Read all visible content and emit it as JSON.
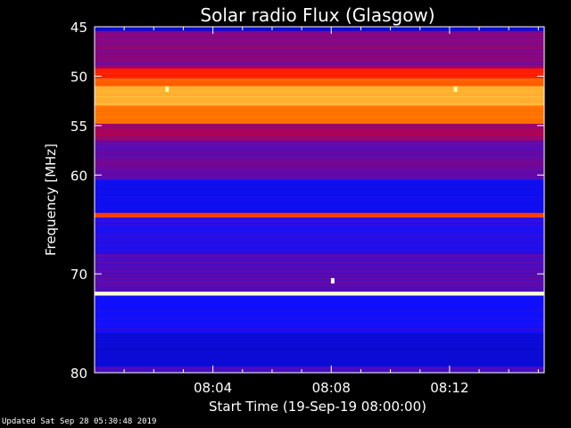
{
  "chart_data": {
    "type": "heatmap",
    "title": "Solar radio Flux (Glasgow)",
    "xlabel": "Start Time (19-Sep-19 08:00:00)",
    "ylabel": "Frequency [MHz]",
    "x_range_minutes": [
      0,
      15.2
    ],
    "ylim": [
      45,
      80
    ],
    "y_inverted": true,
    "x_ticks": [
      {
        "minutes": 4,
        "label": "08:04"
      },
      {
        "minutes": 8,
        "label": "08:08"
      },
      {
        "minutes": 12,
        "label": "08:12"
      }
    ],
    "y_ticks": [
      {
        "value": 45,
        "label": "45"
      },
      {
        "value": 50,
        "label": "50"
      },
      {
        "value": 55,
        "label": "55"
      },
      {
        "value": 60,
        "label": "60"
      },
      {
        "value": 70,
        "label": "70"
      },
      {
        "value": 80,
        "label": "80"
      }
    ],
    "colormap": [
      "#00006a",
      "#1010ff",
      "#ff0000",
      "#ff8000",
      "#ffff80",
      "#ffffff"
    ],
    "bands": [
      {
        "from": 45,
        "to": 45.4,
        "intensity": 0.15
      },
      {
        "from": 45.4,
        "to": 49.2,
        "intensity": 0.3
      },
      {
        "from": 49.2,
        "to": 50.2,
        "intensity": 0.45
      },
      {
        "from": 50.2,
        "to": 51.0,
        "intensity": 0.55
      },
      {
        "from": 51.0,
        "to": 53.0,
        "intensity": 0.68
      },
      {
        "from": 53.0,
        "to": 54.8,
        "intensity": 0.58
      },
      {
        "from": 54.8,
        "to": 56.5,
        "intensity": 0.32
      },
      {
        "from": 56.5,
        "to": 60.5,
        "intensity": 0.27
      },
      {
        "from": 60.5,
        "to": 63.8,
        "intensity": 0.18
      },
      {
        "from": 63.8,
        "to": 64.3,
        "intensity": 0.5
      },
      {
        "from": 64.3,
        "to": 68.0,
        "intensity": 0.22
      },
      {
        "from": 68.0,
        "to": 71.8,
        "intensity": 0.26
      },
      {
        "from": 71.8,
        "to": 72.2,
        "intensity": 0.95
      },
      {
        "from": 72.2,
        "to": 76.0,
        "intensity": 0.2
      },
      {
        "from": 76.0,
        "to": 79.4,
        "intensity": 0.14
      },
      {
        "from": 79.4,
        "to": 80,
        "intensity": 0.25
      }
    ],
    "spikes": [
      {
        "minutes": 2.45,
        "mhz": 51.3,
        "intensity": 0.85
      },
      {
        "minutes": 12.2,
        "mhz": 51.3,
        "intensity": 0.85
      },
      {
        "minutes": 8.05,
        "mhz": 70.7,
        "intensity": 1.0
      }
    ]
  },
  "footer": "Updated Sat Sep 28 05:30:48 2019"
}
